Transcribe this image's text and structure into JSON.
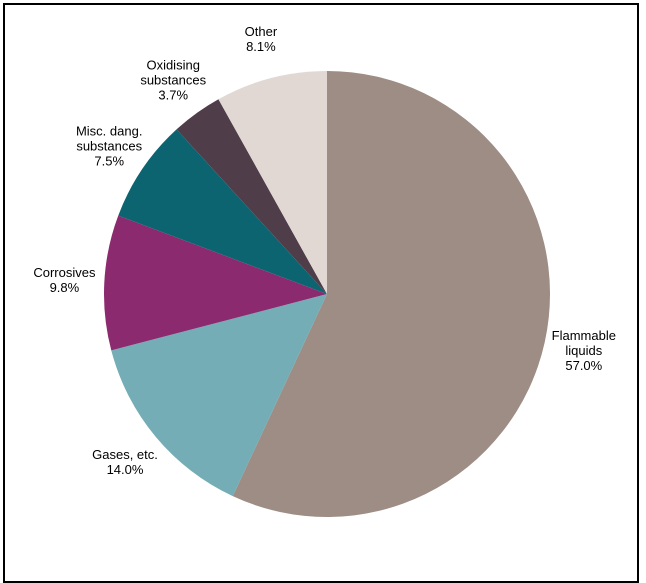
{
  "chart_data": {
    "type": "pie",
    "slices": [
      {
        "label": "Flammable liquids",
        "label_lines": [
          "Flammable",
          "liquids"
        ],
        "value": 57.0,
        "value_label": "57.0%",
        "color": "#9d8d84"
      },
      {
        "label": "Gases, etc.",
        "label_lines": [
          "Gases, etc."
        ],
        "value": 14.0,
        "value_label": "14.0%",
        "color": "#74adb5"
      },
      {
        "label": "Corrosives",
        "label_lines": [
          "Corrosives"
        ],
        "value": 9.8,
        "value_label": "9.8%",
        "color": "#8b2a6e"
      },
      {
        "label": "Misc. dang. substances",
        "label_lines": [
          "Misc. dang.",
          "substances"
        ],
        "value": 7.5,
        "value_label": "7.5%",
        "color": "#0b6470"
      },
      {
        "label": "Oxidising substances",
        "label_lines": [
          "Oxidising",
          "substances"
        ],
        "value": 3.7,
        "value_label": "3.7%",
        "color": "#4f3d49"
      },
      {
        "label": "Other",
        "label_lines": [
          "Other"
        ],
        "value": 8.1,
        "value_label": "8.1%",
        "color": "#e1d8d4"
      }
    ],
    "start": "12 o'clock",
    "direction": "clockwise",
    "title": "",
    "legend": "none (labels outside slices)"
  }
}
